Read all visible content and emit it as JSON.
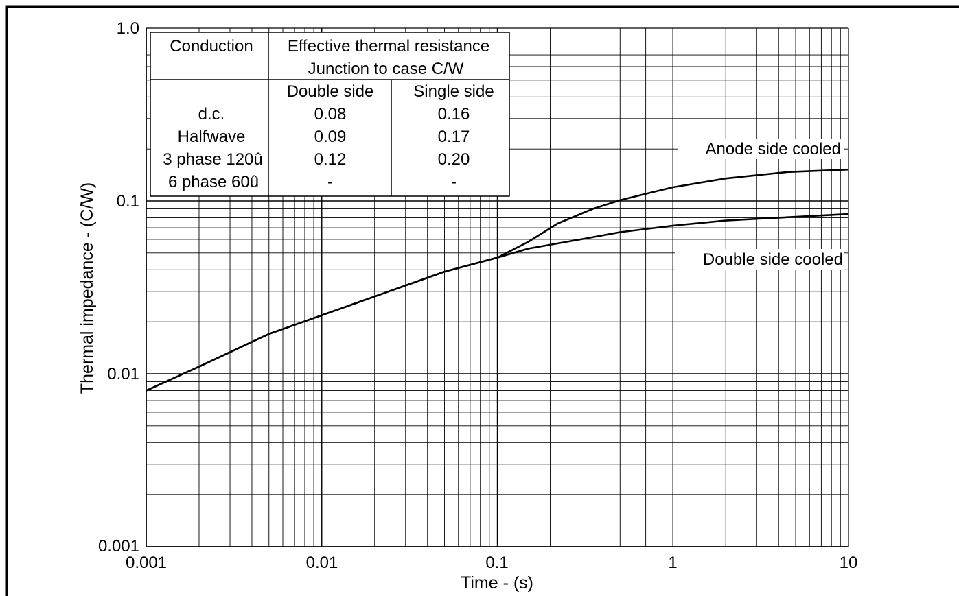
{
  "chart_data": {
    "type": "line",
    "x_scale": "log",
    "y_scale": "log",
    "xlim": [
      0.001,
      10
    ],
    "ylim": [
      0.001,
      1.0
    ],
    "grid": true,
    "xlabel": "Time - (s)",
    "ylabel": "Thermal impedance - (C/W)",
    "x_tick_labels": [
      "0.001",
      "0.01",
      "0.1",
      "1",
      "10"
    ],
    "y_tick_labels": [
      "0.001",
      "0.01",
      "0.1",
      "1.0"
    ],
    "series": [
      {
        "name": "Anode side cooled",
        "x": [
          0.001,
          0.002,
          0.005,
          0.009,
          0.02,
          0.05,
          0.1,
          0.15,
          0.22,
          0.35,
          0.5,
          0.7,
          1.0,
          2.0,
          4.5,
          10
        ],
        "y": [
          0.008,
          0.011,
          0.017,
          0.021,
          0.028,
          0.039,
          0.047,
          0.058,
          0.074,
          0.09,
          0.101,
          0.11,
          0.12,
          0.135,
          0.147,
          0.152
        ]
      },
      {
        "name": "Double side cooled",
        "x": [
          0.001,
          0.002,
          0.005,
          0.009,
          0.02,
          0.05,
          0.1,
          0.15,
          0.3,
          0.5,
          1.0,
          2.0,
          4.0,
          10
        ],
        "y": [
          0.008,
          0.011,
          0.017,
          0.021,
          0.028,
          0.039,
          0.047,
          0.053,
          0.06,
          0.066,
          0.072,
          0.077,
          0.08,
          0.084
        ]
      }
    ]
  },
  "table": {
    "header_conduction": "Conduction",
    "header_resistance_line1": "Effective thermal resistance",
    "header_resistance_line2": "Junction to case C/W",
    "col_double": "Double side",
    "col_single": "Single side",
    "rows": [
      {
        "label": "d.c.",
        "double": "0.08",
        "single": "0.16"
      },
      {
        "label": "Halfwave",
        "double": "0.09",
        "single": "0.17"
      },
      {
        "label": "3 phase 120û",
        "double": "0.12",
        "single": "0.20"
      },
      {
        "label": "6 phase 60û",
        "double": "-",
        "single": "-"
      }
    ]
  }
}
